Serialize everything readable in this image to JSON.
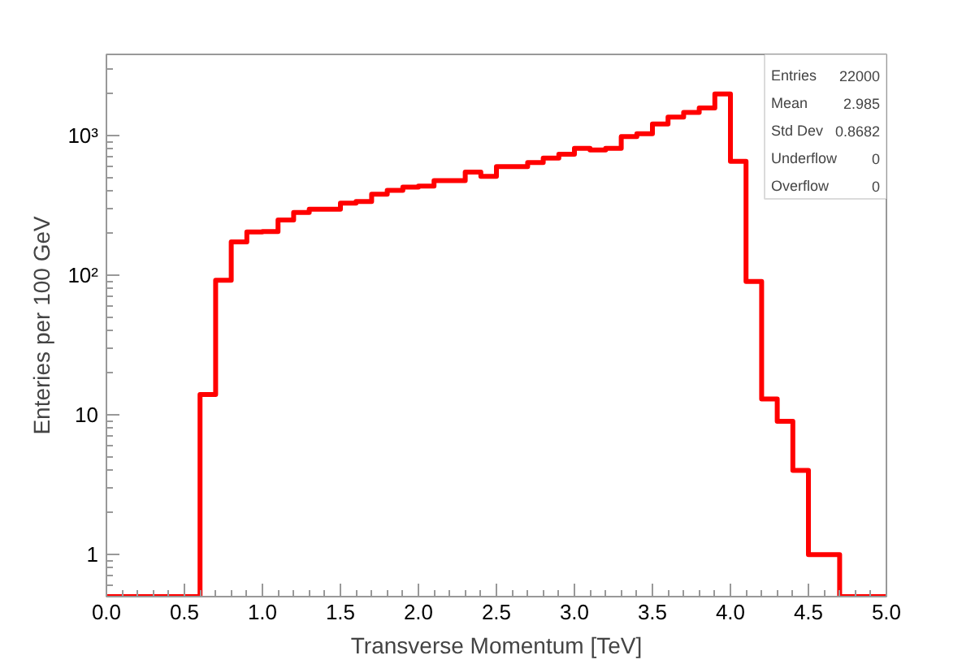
{
  "chart_data": {
    "type": "histogram",
    "xlabel": "Transverse Momentum [TeV]",
    "ylabel": "Enteries per 100 GeV",
    "log": "y",
    "grid": false,
    "color": "#ff0000",
    "bins": [
      0,
      0.1,
      0.2,
      0.3,
      0.4,
      0.5,
      0.6,
      0.7,
      0.8,
      0.9,
      1.0,
      1.1,
      1.2,
      1.3,
      1.4,
      1.5,
      1.6,
      1.7,
      1.8,
      1.9,
      2.0,
      2.1,
      2.2,
      2.3,
      2.4,
      2.5,
      2.6,
      2.7,
      2.8,
      2.9,
      3.0,
      3.1,
      3.2,
      3.3,
      3.4,
      3.5,
      3.6,
      3.7,
      3.8,
      3.9,
      4.0,
      4.1,
      4.2,
      4.3,
      4.4,
      4.5,
      4.6,
      4.7,
      4.8,
      4.9,
      5.0
    ],
    "values": [
      null,
      null,
      null,
      null,
      null,
      null,
      14,
      92,
      173,
      204,
      205,
      248,
      281,
      296,
      296,
      327,
      336,
      380,
      404,
      427,
      434,
      474,
      474,
      547,
      509,
      598,
      598,
      640,
      689,
      733,
      808,
      787,
      808,
      982,
      1027,
      1205,
      1351,
      1462,
      1574,
      1980,
      653,
      90,
      13,
      9,
      4,
      1,
      1,
      null,
      null,
      null
    ],
    "xlim": [
      0,
      5
    ],
    "ylim": [
      0.5,
      3800
    ],
    "xticks": [
      {
        "value": 0,
        "label": "0.0"
      },
      0.5,
      {
        "value": 1,
        "label": "1.0"
      },
      1.5,
      {
        "value": 2,
        "label": "2.0"
      },
      2.5,
      {
        "value": 3,
        "label": "3.0"
      },
      3.5,
      {
        "value": 4,
        "label": "4.0"
      },
      4.5,
      {
        "value": 5,
        "label": "5.0"
      }
    ],
    "yticks": [
      1,
      10,
      {
        "value": 100,
        "label": "10²"
      },
      {
        "value": 1000,
        "label": "10³"
      }
    ],
    "annotations": [
      "Entries",
      "22000",
      "Mean",
      "2.985",
      "Std Dev",
      "0.8682",
      "Underflow",
      "0",
      "Overflow",
      "0"
    ]
  }
}
